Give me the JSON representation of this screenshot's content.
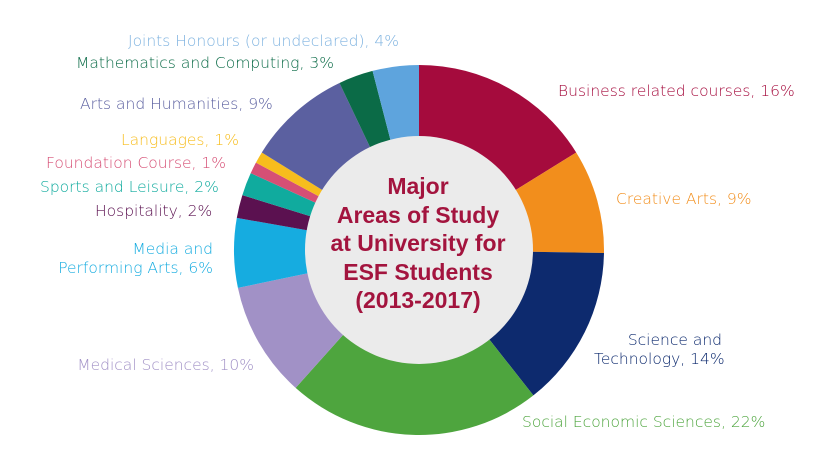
{
  "chart_data": {
    "type": "pie",
    "variant": "donut",
    "title_lines": [
      "Major",
      "Areas of Study",
      "at University for",
      "ESF Students",
      "(2013-2017)"
    ],
    "slices": [
      {
        "label_lines": [
          "Business related courses, 16%"
        ],
        "value": 16,
        "color": "#a50b3d",
        "label_color": "#a50b3d"
      },
      {
        "label_lines": [
          "Creative Arts, 9%"
        ],
        "value": 9,
        "color": "#f28e1c",
        "label_color": "#f28e1c"
      },
      {
        "label_lines": [
          "Science and",
          "Technology, 14%"
        ],
        "value": 14,
        "color": "#0d2a6e",
        "label_color": "#0d2a6e"
      },
      {
        "label_lines": [
          "Social Economic Sciences, 22%"
        ],
        "value": 22,
        "color": "#4ea53e",
        "label_color": "#4ea53e"
      },
      {
        "label_lines": [
          "Medical Sciences, 10%"
        ],
        "value": 10,
        "color": "#a191c6",
        "label_color": "#a191c6"
      },
      {
        "label_lines": [
          "Media and",
          "Performing Arts, 6%"
        ],
        "value": 6,
        "color": "#16ace0",
        "label_color": "#16ace0"
      },
      {
        "label_lines": [
          "Hospitality, 2%"
        ],
        "value": 2,
        "color": "#5b1150",
        "label_color": "#5b1150"
      },
      {
        "label_lines": [
          "Sports and Leisure, 2%"
        ],
        "value": 2,
        "color": "#10ab9e",
        "label_color": "#10ab9e"
      },
      {
        "label_lines": [
          "Foundation Course, 1%"
        ],
        "value": 1,
        "color": "#d64f75",
        "label_color": "#d64f75"
      },
      {
        "label_lines": [
          "Languages, 1%"
        ],
        "value": 1,
        "color": "#f7bd1d",
        "label_color": "#f7bd1d"
      },
      {
        "label_lines": [
          "Arts and Humanities, 9%"
        ],
        "value": 9,
        "color": "#5b60a0",
        "label_color": "#5b60a0"
      },
      {
        "label_lines": [
          "Mathematics and Computing, 3%"
        ],
        "value": 3,
        "color": "#0b6b47",
        "label_color": "#0b6b47"
      },
      {
        "label_lines": [
          "Joints Honours (or undeclared), 4%"
        ],
        "value": 4,
        "color": "#5ea4dd",
        "label_color": "#7fb3e0"
      }
    ],
    "center_fill": "#ebebeb",
    "start_angle": "12 o'clock",
    "direction": "clockwise",
    "legend": "none",
    "grid": false
  }
}
